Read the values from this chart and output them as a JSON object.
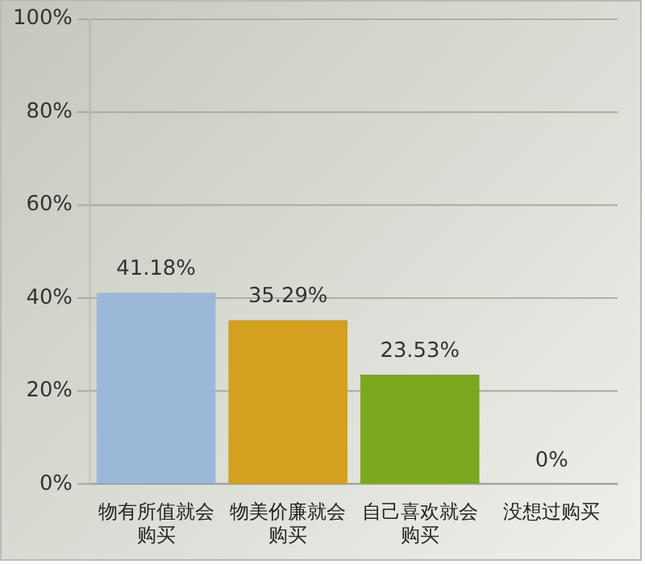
{
  "chart_data": {
    "type": "bar",
    "categories": [
      "物有所值就会购买",
      "物美价廉就会购买",
      "自己喜欢就会购买",
      "没想过购买"
    ],
    "values": [
      41.18,
      35.29,
      23.53,
      0
    ],
    "colors": [
      "#9cb8d8",
      "#d4a020",
      "#7aa81e",
      "#f0a080"
    ],
    "value_labels": [
      "41.18%",
      "35.29%",
      "23.53%",
      "0%"
    ],
    "ylim": [
      0,
      100
    ],
    "yticks": [
      {
        "value": 0,
        "label": "0%"
      },
      {
        "value": 20,
        "label": "20%"
      },
      {
        "value": 40,
        "label": "40%"
      },
      {
        "value": 60,
        "label": "60%"
      },
      {
        "value": 80,
        "label": "80%"
      },
      {
        "value": 100,
        "label": "100%"
      }
    ],
    "grid": "y"
  }
}
